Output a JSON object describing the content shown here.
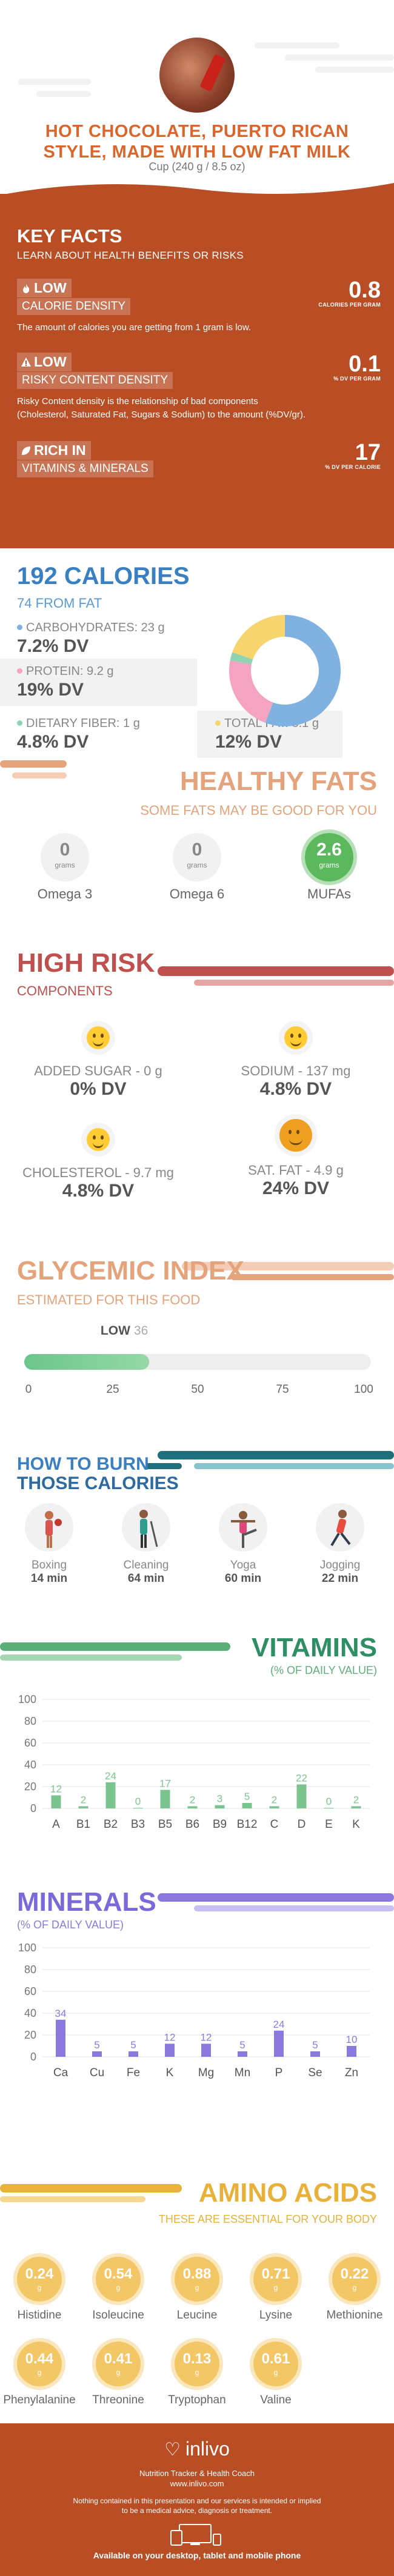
{
  "header": {
    "title_line1": "HOT CHOCOLATE, PUERTO RICAN",
    "title_line2": "STYLE, MADE WITH LOW FAT MILK",
    "serving": "Cup (240 g / 8.5 oz)"
  },
  "key_facts": {
    "title": "KEY FACTS",
    "subtitle": "LEARN ABOUT HEALTH BENEFITS OR RISKS",
    "calorie_density": {
      "badge": "LOW",
      "label": "CALORIE DENSITY",
      "value": "0.8",
      "unit": "CALORIES PER GRAM",
      "desc": "The amount of calories you are getting from 1 gram is low."
    },
    "risky_density": {
      "badge": "LOW",
      "label": "RISKY CONTENT DENSITY",
      "value": "0.1",
      "unit": "% DV PER GRAM",
      "desc1": "Risky Content density is the relationship of bad components",
      "desc2": "(Cholesterol, Saturated Fat, Sugars & Sodium) to the amount (%DV/gr)."
    },
    "vitamins_minerals": {
      "badge": "RICH  IN",
      "label": "VITAMINS & MINERALS",
      "value": "17",
      "unit": "% DV PER CALORIE"
    }
  },
  "calories": {
    "title": "192 CALORIES",
    "from_fat": "74 FROM FAT",
    "carbs": {
      "label": "CARBOHYDRATES: 23 g",
      "dv": "7.2% DV",
      "color": "#7fb2e0"
    },
    "protein": {
      "label": "PROTEIN: 9.2 g",
      "dv": "19% DV",
      "color": "#f4a3c0"
    },
    "fiber": {
      "label": "DIETARY FIBER: 1 g",
      "dv": "4.8% DV",
      "color": "#8fd3b3"
    },
    "fat": {
      "label": "TOTAL FAT: 8.1 g",
      "dv": "12% DV",
      "color": "#f6d56e"
    },
    "donut": [
      {
        "name": "carbohydrates",
        "grams": 23,
        "color": "#7fb2e0"
      },
      {
        "name": "protein",
        "grams": 9.2,
        "color": "#f4a3c0"
      },
      {
        "name": "fiber",
        "grams": 1,
        "color": "#8fd3b3"
      },
      {
        "name": "fat",
        "grams": 8.1,
        "color": "#f6d56e"
      }
    ]
  },
  "healthy_fats": {
    "title": "HEALTHY FATS",
    "subtitle": "SOME FATS MAY BE GOOD FOR YOU",
    "items": [
      {
        "value": "0",
        "unit": "grams",
        "name": "Omega 3"
      },
      {
        "value": "0",
        "unit": "grams",
        "name": "Omega 6"
      },
      {
        "value": "2.6",
        "unit": "grams",
        "name": "MUFAs"
      }
    ]
  },
  "high_risk": {
    "title": "HIGH RISK",
    "subtitle": "COMPONENTS",
    "items": [
      {
        "name": "ADDED SUGAR - 0 g",
        "dv": "0% DV"
      },
      {
        "name": "SODIUM - 137 mg",
        "dv": "4.8% DV"
      },
      {
        "name": "CHOLESTEROL - 9.7 mg",
        "dv": "4.8% DV"
      },
      {
        "name": "SAT. FAT - 4.9 g",
        "dv": "24% DV"
      }
    ]
  },
  "glycemic": {
    "title": "GLYCEMIC INDEX",
    "subtitle": "ESTIMATED FOR THIS FOOD",
    "level": "LOW",
    "value": 36,
    "value_text": "36",
    "ticks": [
      "0",
      "25",
      "50",
      "75",
      "100"
    ]
  },
  "burn": {
    "title1": "HOW TO BURN",
    "title2": "THOSE CALORIES",
    "items": [
      {
        "name": "Boxing",
        "time": "14 min",
        "icon": "boxing-icon"
      },
      {
        "name": "Cleaning",
        "time": "64 min",
        "icon": "cleaning-icon"
      },
      {
        "name": "Yoga",
        "time": "60 min",
        "icon": "yoga-icon"
      },
      {
        "name": "Jogging",
        "time": "22 min",
        "icon": "jogging-icon"
      }
    ]
  },
  "vitamins": {
    "title": "VITAMINS",
    "subtitle": "(% OF DAILY VALUE)"
  },
  "minerals": {
    "title": "MINERALS",
    "subtitle": "(% OF DAILY VALUE)"
  },
  "chart_data": [
    {
      "type": "bar",
      "title": "VITAMINS",
      "categories": [
        "A",
        "B1",
        "B2",
        "B3",
        "B5",
        "B6",
        "B9",
        "B12",
        "C",
        "D",
        "E",
        "K"
      ],
      "values": [
        12,
        2,
        24,
        0,
        17,
        2,
        3,
        5,
        2,
        22,
        0,
        2
      ],
      "labels": [
        "12",
        "2",
        "24",
        "0",
        "17",
        "2",
        "3",
        "5",
        "2",
        "22",
        "0",
        "2"
      ],
      "ylim": [
        0,
        100
      ],
      "yticks": [
        "0",
        "20",
        "40",
        "60",
        "80",
        "100"
      ],
      "color": "#7cc48f"
    },
    {
      "type": "bar",
      "title": "MINERALS",
      "categories": [
        "Ca",
        "Cu",
        "Fe",
        "K",
        "Mg",
        "Mn",
        "P",
        "Se",
        "Zn"
      ],
      "values": [
        34,
        5,
        5,
        12,
        12,
        5,
        24,
        5,
        10
      ],
      "labels": [
        "34",
        "5",
        "5",
        "12",
        "12",
        "5",
        "24",
        "5",
        "10"
      ],
      "ylim": [
        0,
        100
      ],
      "yticks": [
        "0",
        "20",
        "40",
        "60",
        "80",
        "100"
      ],
      "color": "#8b79df"
    }
  ],
  "amino": {
    "title": "AMINO ACIDS",
    "subtitle": "THESE ARE ESSENTIAL FOR YOUR BODY",
    "unit": "g",
    "items": [
      {
        "value": "0.24",
        "name": "Histidine"
      },
      {
        "value": "0.54",
        "name": "Isoleucine"
      },
      {
        "value": "0.88",
        "name": "Leucine"
      },
      {
        "value": "0.71",
        "name": "Lysine"
      },
      {
        "value": "0.22",
        "name": "Methionine"
      },
      {
        "value": "0.44",
        "name": "Phenylalanine"
      },
      {
        "value": "0.41",
        "name": "Threonine"
      },
      {
        "value": "0.13",
        "name": "Tryptophan"
      },
      {
        "value": "0.61",
        "name": "Valine"
      }
    ]
  },
  "footer": {
    "brand": "inlivo",
    "tagline1": "Nutrition Tracker & Health Coach",
    "tagline2": "www.inlivo.com",
    "disclaimer1": "Nothing contained in this presentation and our services is intended or implied",
    "disclaimer2": "to be a medical advice, diagnosis or treatment.",
    "devices": "Available on your desktop, tablet and mobile phone"
  }
}
